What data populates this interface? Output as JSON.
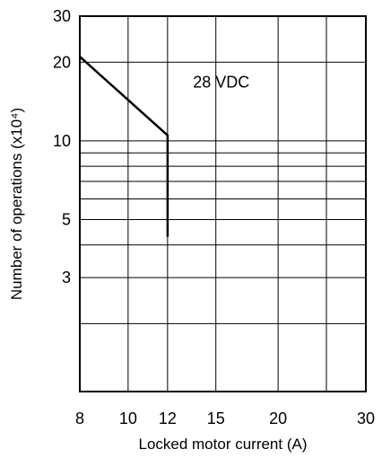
{
  "chart_data": {
    "type": "line",
    "xlabel": "Locked motor current (A)",
    "ylabel": "Number of operations (x10⁴)",
    "x_scale": "log",
    "y_scale": "log",
    "xlim": [
      8,
      30
    ],
    "ylim": [
      1.1,
      30
    ],
    "x_ticks": [
      8,
      10,
      12,
      15,
      20,
      30
    ],
    "y_ticks": [
      3,
      5,
      10,
      20,
      30
    ],
    "x_gridlines": [
      10,
      12,
      15,
      20,
      25
    ],
    "y_gridlines": [
      2,
      3,
      4,
      5,
      6,
      7,
      8,
      9,
      10,
      20
    ],
    "grid": true,
    "legend": "none",
    "annotations": [
      {
        "text": "28 VDC",
        "x": 13.5,
        "y": 16
      }
    ],
    "series": [
      {
        "label": "28 VDC",
        "x": [
          8,
          12,
          12
        ],
        "y": [
          21,
          10.5,
          4.3
        ]
      }
    ]
  }
}
